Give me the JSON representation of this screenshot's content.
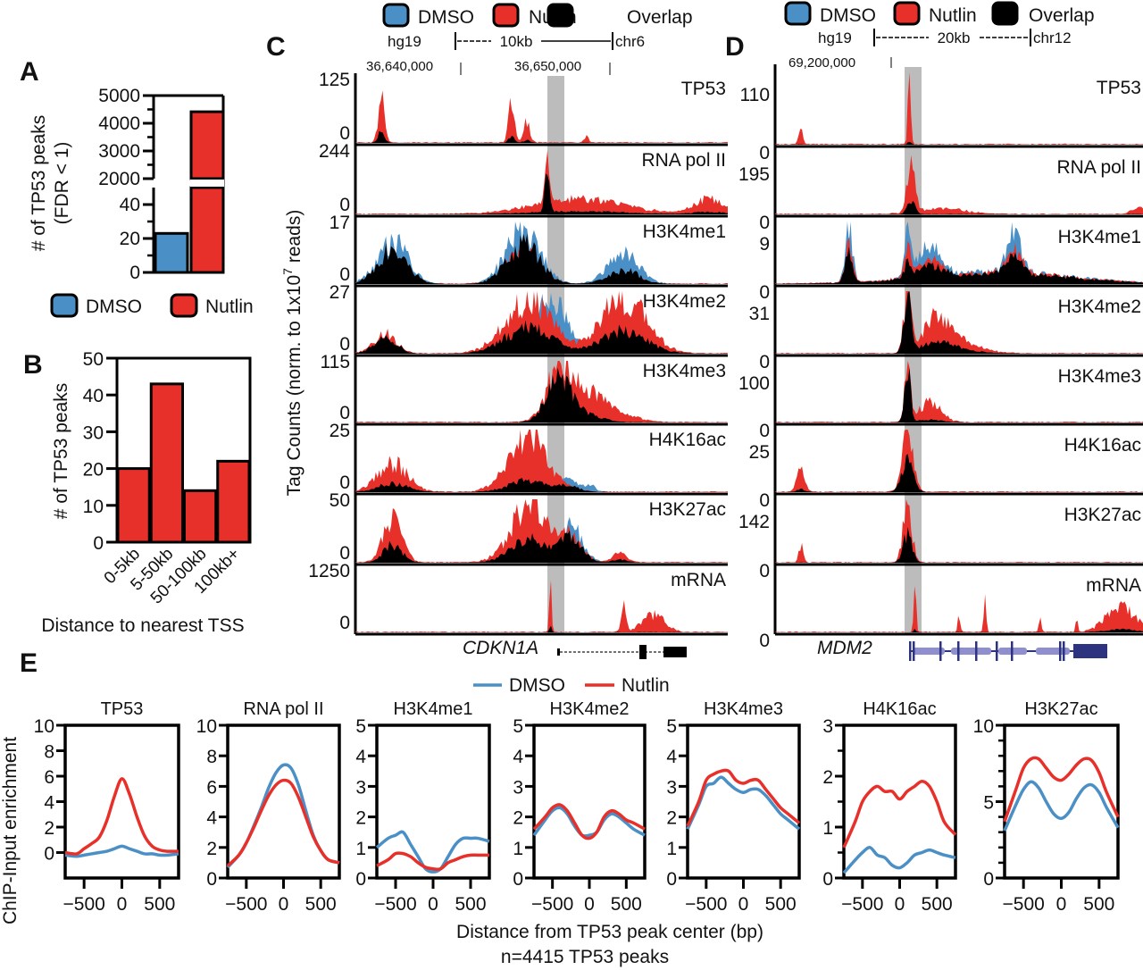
{
  "colors": {
    "dmso": "#4a90c6",
    "nutlin": "#e8302a",
    "overlap": "#000000",
    "gene_mdm2": "#2e3380",
    "gene_mdm2_intron": "#8f8fcf",
    "highlight": "#bcbcbc"
  },
  "panel_letters": {
    "a": "A",
    "b": "B",
    "c": "C",
    "d": "D",
    "e": "E"
  },
  "legend": {
    "dmso": "DMSO",
    "nutlin": "Nutlin",
    "overlap": "Overlap"
  },
  "chart_data": [
    {
      "id": "A",
      "type": "bar",
      "ylabel_line1": "# of TP53 peaks",
      "ylabel_line2": "(FDR < 1)",
      "categories": [
        "DMSO",
        "Nutlin"
      ],
      "values": [
        23,
        4415
      ],
      "axis_break": true,
      "lower_ticks": [
        "0",
        "20",
        "40"
      ],
      "upper_ticks": [
        "2000",
        "3000",
        "4000",
        "5000"
      ],
      "lower_ylim": [
        0,
        50
      ],
      "upper_ylim": [
        2000,
        5000
      ]
    },
    {
      "id": "B",
      "type": "bar",
      "ylabel": "# of TP53 peaks",
      "xlabel": "Distance to nearest TSS",
      "categories": [
        "0-5kb",
        "5-50kb",
        "50-100kb",
        "100kb+"
      ],
      "values": [
        20,
        43,
        14,
        22
      ],
      "ylim": [
        0,
        50
      ],
      "yticks": [
        "0",
        "10",
        "20",
        "30",
        "40",
        "50"
      ]
    },
    {
      "id": "C",
      "type": "area",
      "genome": "hg19",
      "scale_label": "10kb",
      "chrom": "chr6",
      "coords": [
        "36,640,000",
        "36,650,000"
      ],
      "gene": "CDKN1A",
      "ylabel": "Tag Counts (norm. to 1x10",
      "ylabel_sup": "7",
      "ylabel_tail": " reads)",
      "tracks": [
        {
          "name": "TP53",
          "max": "125",
          "min": "0"
        },
        {
          "name": "RNA pol II",
          "max": "244",
          "min": "0"
        },
        {
          "name": "H3K4me1",
          "max": "17",
          "min": "0"
        },
        {
          "name": "H3K4me2",
          "max": "27",
          "min": "0"
        },
        {
          "name": "H3K4me3",
          "max": "115",
          "min": "0"
        },
        {
          "name": "H4K16ac",
          "max": "25",
          "min": "0"
        },
        {
          "name": "H3K27ac",
          "max": "50",
          "min": "0"
        },
        {
          "name": "mRNA",
          "max": "1250",
          "min": "0"
        }
      ]
    },
    {
      "id": "D",
      "type": "area",
      "genome": "hg19",
      "scale_label": "20kb",
      "chrom": "chr12",
      "coords": [
        "69,200,000"
      ],
      "gene": "MDM2",
      "tracks": [
        {
          "name": "TP53",
          "max": "110",
          "min": "0"
        },
        {
          "name": "RNA pol II",
          "max": "195",
          "min": "0"
        },
        {
          "name": "H3K4me1",
          "max": "9",
          "min": "0"
        },
        {
          "name": "H3K4me2",
          "max": "31",
          "min": "0"
        },
        {
          "name": "H3K4me3",
          "max": "100",
          "min": "0"
        },
        {
          "name": "H4K16ac",
          "max": "25",
          "min": "0"
        },
        {
          "name": "H3K27ac",
          "max": "142",
          "min": "0"
        },
        {
          "name": "mRNA",
          "max": "",
          "min": "0"
        }
      ]
    },
    {
      "id": "E",
      "type": "line",
      "ylabel": "ChIP-Input enrichment",
      "xlabel": "Distance from TP53 peak center (bp)",
      "footnote": "n=4415 TP53 peaks",
      "x": [
        -750,
        -600,
        -500,
        -400,
        -300,
        -200,
        -100,
        0,
        100,
        200,
        300,
        400,
        500,
        600,
        750
      ],
      "xticks": [
        "−500",
        "0",
        "500"
      ],
      "xtick_values": [
        -500,
        0,
        500
      ],
      "subplots": [
        {
          "title": "TP53",
          "ylim": [
            -2,
            10
          ],
          "yticks": [
            0,
            2,
            4,
            6,
            8,
            10
          ],
          "series": [
            {
              "name": "DMSO",
              "values": [
                -0.2,
                -0.3,
                -0.2,
                -0.1,
                0.0,
                0.1,
                0.3,
                0.5,
                0.3,
                0.1,
                -0.1,
                -0.1,
                -0.2,
                -0.2,
                -0.1
              ]
            },
            {
              "name": "Nutlin",
              "values": [
                0.0,
                -0.1,
                0.3,
                0.7,
                1.2,
                2.5,
                4.4,
                5.8,
                4.6,
                2.8,
                1.3,
                0.5,
                0.2,
                0.1,
                0.1
              ]
            }
          ]
        },
        {
          "title": "RNA pol II",
          "ylim": [
            0,
            10
          ],
          "yticks": [
            0,
            2,
            4,
            6,
            8,
            10
          ],
          "series": [
            {
              "name": "DMSO",
              "values": [
                0.7,
                1.5,
                2.3,
                3.4,
                4.6,
                5.9,
                6.9,
                7.4,
                7.2,
                6.1,
                4.4,
                2.8,
                1.8,
                1.2,
                1.0
              ]
            },
            {
              "name": "Nutlin",
              "values": [
                0.8,
                1.5,
                2.3,
                3.3,
                4.4,
                5.4,
                6.1,
                6.4,
                6.2,
                5.3,
                4.0,
                2.7,
                1.8,
                1.2,
                1.0
              ]
            }
          ]
        },
        {
          "title": "H3K4me1",
          "ylim": [
            0,
            5
          ],
          "yticks": [
            0,
            1,
            2,
            3,
            4,
            5
          ],
          "series": [
            {
              "name": "DMSO",
              "values": [
                1.0,
                1.3,
                1.4,
                1.5,
                1.1,
                0.7,
                0.3,
                0.2,
                0.3,
                0.7,
                1.1,
                1.3,
                1.3,
                1.3,
                1.2
              ]
            },
            {
              "name": "Nutlin",
              "values": [
                0.4,
                0.6,
                0.8,
                0.8,
                0.7,
                0.5,
                0.35,
                0.3,
                0.3,
                0.5,
                0.6,
                0.7,
                0.75,
                0.75,
                0.75
              ]
            }
          ]
        },
        {
          "title": "H3K4me2",
          "ylim": [
            0,
            5
          ],
          "yticks": [
            0,
            1,
            2,
            3,
            4,
            5
          ],
          "series": [
            {
              "name": "DMSO",
              "values": [
                1.4,
                1.9,
                2.2,
                2.3,
                2.1,
                1.7,
                1.4,
                1.4,
                1.5,
                1.9,
                2.1,
                2.0,
                1.8,
                1.6,
                1.4
              ]
            },
            {
              "name": "Nutlin",
              "values": [
                1.6,
                2.0,
                2.3,
                2.4,
                2.2,
                1.8,
                1.4,
                1.3,
                1.5,
                2.0,
                2.2,
                2.1,
                1.9,
                1.8,
                1.6
              ]
            }
          ]
        },
        {
          "title": "H3K4me3",
          "ylim": [
            0,
            5
          ],
          "yticks": [
            0,
            1,
            2,
            3,
            4,
            5
          ],
          "series": [
            {
              "name": "DMSO",
              "values": [
                1.6,
                2.4,
                3.0,
                3.1,
                3.3,
                3.1,
                2.9,
                2.8,
                2.9,
                2.9,
                2.7,
                2.4,
                2.1,
                1.9,
                1.6
              ]
            },
            {
              "name": "Nutlin",
              "values": [
                1.7,
                2.5,
                3.2,
                3.4,
                3.5,
                3.5,
                3.2,
                3.1,
                3.2,
                3.2,
                2.9,
                2.6,
                2.3,
                2.1,
                1.8
              ]
            }
          ]
        },
        {
          "title": "H4K16ac",
          "ylim": [
            0,
            3
          ],
          "yticks": [
            0,
            1,
            2,
            3
          ],
          "series": [
            {
              "name": "DMSO",
              "values": [
                0.1,
                0.35,
                0.5,
                0.6,
                0.45,
                0.4,
                0.25,
                0.2,
                0.3,
                0.45,
                0.5,
                0.55,
                0.5,
                0.45,
                0.4
              ]
            },
            {
              "name": "Nutlin",
              "values": [
                0.6,
                1.1,
                1.5,
                1.7,
                1.8,
                1.7,
                1.7,
                1.55,
                1.7,
                1.8,
                1.9,
                1.8,
                1.5,
                1.1,
                0.85
              ]
            }
          ]
        },
        {
          "title": "H3K27ac",
          "ylim": [
            0,
            10
          ],
          "yticks": [
            0,
            5,
            10
          ],
          "minor_yticks": [
            1,
            2,
            3,
            4,
            6,
            7,
            8,
            9
          ],
          "series": [
            {
              "name": "DMSO",
              "values": [
                3.1,
                4.8,
                5.8,
                6.3,
                5.9,
                5.0,
                4.2,
                3.9,
                4.3,
                5.2,
                5.9,
                6.1,
                5.6,
                4.6,
                3.3
              ]
            },
            {
              "name": "Nutlin",
              "values": [
                3.7,
                5.8,
                7.2,
                7.8,
                7.8,
                7.2,
                6.6,
                6.4,
                6.8,
                7.4,
                7.8,
                7.7,
                6.9,
                5.6,
                4.0
              ]
            }
          ]
        }
      ]
    }
  ]
}
